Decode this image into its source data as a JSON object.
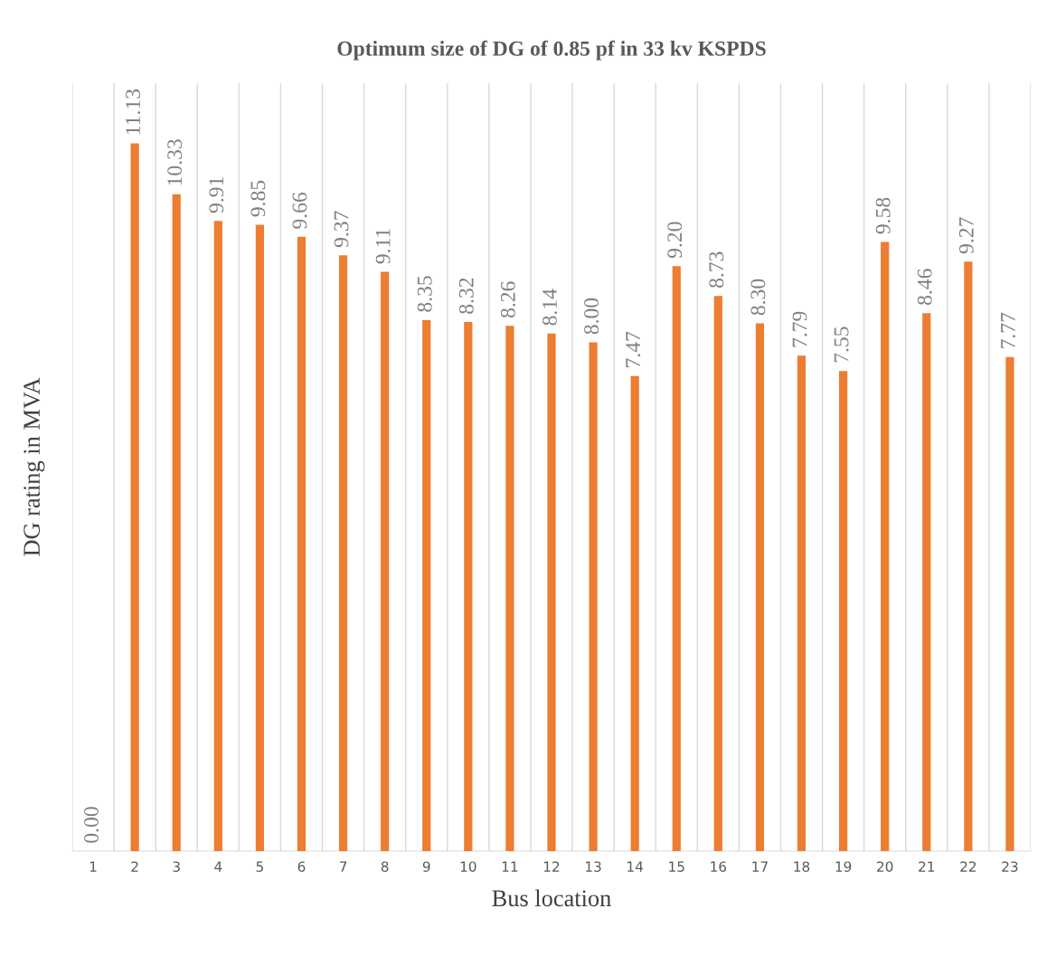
{
  "chart_data": {
    "type": "bar",
    "title": "Optimum size of DG of 0.85 pf in 33 kv KSPDS",
    "xlabel": "Bus location",
    "ylabel": "DG rating in MVA",
    "categories": [
      "1",
      "2",
      "3",
      "4",
      "5",
      "6",
      "7",
      "8",
      "9",
      "10",
      "11",
      "12",
      "13",
      "14",
      "15",
      "16",
      "17",
      "18",
      "19",
      "20",
      "21",
      "22",
      "23"
    ],
    "values": [
      0.0,
      11.13,
      10.33,
      9.91,
      9.85,
      9.66,
      9.37,
      9.11,
      8.35,
      8.32,
      8.26,
      8.14,
      8.0,
      7.47,
      9.2,
      8.73,
      8.3,
      7.79,
      7.55,
      9.58,
      8.46,
      9.27,
      7.77
    ],
    "value_labels": [
      "0.00",
      "11.13",
      "10.33",
      "9.91",
      "9.85",
      "9.66",
      "9.37",
      "9.11",
      "8.35",
      "8.32",
      "8.26",
      "8.14",
      "8.00",
      "7.47",
      "9.20",
      "8.73",
      "8.30",
      "7.79",
      "7.55",
      "9.58",
      "8.46",
      "9.27",
      "7.77"
    ],
    "color": "#ed7d31",
    "grid": "x",
    "tick_labels": "x"
  }
}
